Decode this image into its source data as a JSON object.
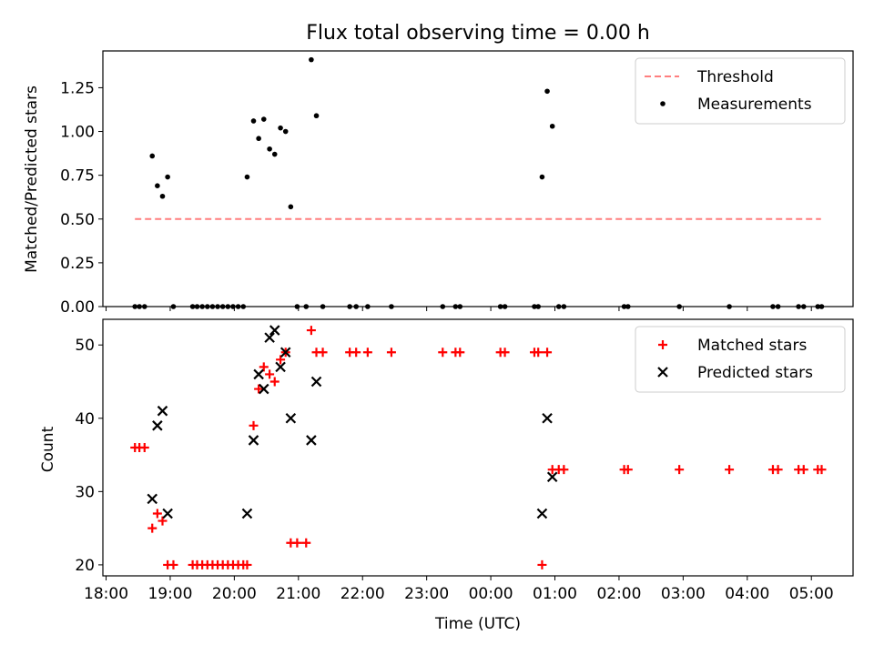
{
  "chart_data": {
    "type": "scatter",
    "title": "Flux total observing time = 0.00 h",
    "xlabel": "Time (UTC)",
    "x_unit": "hours since 18:00 UTC",
    "x_ticks": [
      {
        "x": 0,
        "label": "18:00"
      },
      {
        "x": 1,
        "label": "19:00"
      },
      {
        "x": 2,
        "label": "20:00"
      },
      {
        "x": 3,
        "label": "21:00"
      },
      {
        "x": 4,
        "label": "22:00"
      },
      {
        "x": 5,
        "label": "23:00"
      },
      {
        "x": 6,
        "label": "00:00"
      },
      {
        "x": 7,
        "label": "01:00"
      },
      {
        "x": 8,
        "label": "02:00"
      },
      {
        "x": 9,
        "label": "03:00"
      },
      {
        "x": 10,
        "label": "04:00"
      },
      {
        "x": 11,
        "label": "05:00"
      }
    ],
    "xlim": [
      -0.05,
      11.65
    ],
    "panels": [
      {
        "ylabel": "Matched/Predicted stars",
        "ylim": [
          0,
          1.46
        ],
        "y_ticks": [
          "0.00",
          "0.25",
          "0.50",
          "0.75",
          "1.00",
          "1.25"
        ],
        "y_tick_values": [
          0,
          0.25,
          0.5,
          0.75,
          1.0,
          1.25
        ],
        "legend_position": "top-right",
        "threshold": {
          "name": "Threshold",
          "color": "#ff7f7f",
          "style": "dashed",
          "y": 0.5,
          "x_start": 0.45,
          "x_end": 11.15
        },
        "series": [
          {
            "name": "Measurements",
            "marker": "dot",
            "color": "#000000",
            "points": [
              [
                0.45,
                0
              ],
              [
                0.52,
                0
              ],
              [
                0.6,
                0
              ],
              [
                0.72,
                0.86
              ],
              [
                0.8,
                0.69
              ],
              [
                0.88,
                0.63
              ],
              [
                0.96,
                0.74
              ],
              [
                1.05,
                0
              ],
              [
                1.35,
                0
              ],
              [
                1.42,
                0
              ],
              [
                1.5,
                0
              ],
              [
                1.58,
                0
              ],
              [
                1.66,
                0
              ],
              [
                1.74,
                0
              ],
              [
                1.82,
                0
              ],
              [
                1.9,
                0
              ],
              [
                1.98,
                0
              ],
              [
                2.06,
                0
              ],
              [
                2.14,
                0
              ],
              [
                2.2,
                0.74
              ],
              [
                2.3,
                1.06
              ],
              [
                2.38,
                0.96
              ],
              [
                2.46,
                1.07
              ],
              [
                2.55,
                0.9
              ],
              [
                2.63,
                0.87
              ],
              [
                2.72,
                1.02
              ],
              [
                2.8,
                1.0
              ],
              [
                2.88,
                0.57
              ],
              [
                2.98,
                0
              ],
              [
                3.12,
                0
              ],
              [
                3.2,
                1.41
              ],
              [
                3.28,
                1.09
              ],
              [
                3.38,
                0
              ],
              [
                3.8,
                0
              ],
              [
                3.9,
                0
              ],
              [
                4.08,
                0
              ],
              [
                4.45,
                0
              ],
              [
                5.25,
                0
              ],
              [
                5.45,
                0
              ],
              [
                5.52,
                0
              ],
              [
                6.15,
                0
              ],
              [
                6.22,
                0
              ],
              [
                6.68,
                0
              ],
              [
                6.74,
                0
              ],
              [
                6.8,
                0.74
              ],
              [
                6.88,
                1.23
              ],
              [
                6.96,
                1.03
              ],
              [
                7.06,
                0
              ],
              [
                7.14,
                0
              ],
              [
                8.08,
                0
              ],
              [
                8.14,
                0
              ],
              [
                8.94,
                0
              ],
              [
                9.72,
                0
              ],
              [
                10.4,
                0
              ],
              [
                10.48,
                0
              ],
              [
                10.8,
                0
              ],
              [
                10.88,
                0
              ],
              [
                11.1,
                0
              ],
              [
                11.16,
                0
              ]
            ]
          }
        ]
      },
      {
        "ylabel": "Count",
        "ylim": [
          18.5,
          53.5
        ],
        "y_ticks": [
          "20",
          "30",
          "40",
          "50"
        ],
        "y_tick_values": [
          20,
          30,
          40,
          50
        ],
        "legend_position": "top-right",
        "series": [
          {
            "name": "Matched stars",
            "marker": "plus",
            "color": "#ff0000",
            "points": [
              [
                0.45,
                36
              ],
              [
                0.52,
                36
              ],
              [
                0.6,
                36
              ],
              [
                0.72,
                25
              ],
              [
                0.8,
                27
              ],
              [
                0.88,
                26
              ],
              [
                0.96,
                20
              ],
              [
                1.05,
                20
              ],
              [
                1.35,
                20
              ],
              [
                1.42,
                20
              ],
              [
                1.5,
                20
              ],
              [
                1.58,
                20
              ],
              [
                1.66,
                20
              ],
              [
                1.74,
                20
              ],
              [
                1.82,
                20
              ],
              [
                1.9,
                20
              ],
              [
                1.98,
                20
              ],
              [
                2.06,
                20
              ],
              [
                2.14,
                20
              ],
              [
                2.2,
                20
              ],
              [
                2.3,
                39
              ],
              [
                2.38,
                44
              ],
              [
                2.46,
                47
              ],
              [
                2.55,
                46
              ],
              [
                2.63,
                45
              ],
              [
                2.72,
                48
              ],
              [
                2.8,
                49
              ],
              [
                2.88,
                23
              ],
              [
                2.98,
                23
              ],
              [
                3.12,
                23
              ],
              [
                3.2,
                52
              ],
              [
                3.28,
                49
              ],
              [
                3.38,
                49
              ],
              [
                3.8,
                49
              ],
              [
                3.9,
                49
              ],
              [
                4.08,
                49
              ],
              [
                4.45,
                49
              ],
              [
                5.25,
                49
              ],
              [
                5.45,
                49
              ],
              [
                5.52,
                49
              ],
              [
                6.15,
                49
              ],
              [
                6.22,
                49
              ],
              [
                6.68,
                49
              ],
              [
                6.74,
                49
              ],
              [
                6.8,
                20
              ],
              [
                6.88,
                49
              ],
              [
                6.96,
                33
              ],
              [
                7.06,
                33
              ],
              [
                7.14,
                33
              ],
              [
                8.08,
                33
              ],
              [
                8.14,
                33
              ],
              [
                8.94,
                33
              ],
              [
                9.72,
                33
              ],
              [
                10.4,
                33
              ],
              [
                10.48,
                33
              ],
              [
                10.8,
                33
              ],
              [
                10.88,
                33
              ],
              [
                11.1,
                33
              ],
              [
                11.16,
                33
              ]
            ]
          },
          {
            "name": "Predicted stars",
            "marker": "x",
            "color": "#000000",
            "points": [
              [
                0.72,
                29
              ],
              [
                0.8,
                39
              ],
              [
                0.88,
                41
              ],
              [
                0.96,
                27
              ],
              [
                2.2,
                27
              ],
              [
                2.3,
                37
              ],
              [
                2.38,
                46
              ],
              [
                2.46,
                44
              ],
              [
                2.55,
                51
              ],
              [
                2.63,
                52
              ],
              [
                2.72,
                47
              ],
              [
                2.8,
                49
              ],
              [
                2.88,
                40
              ],
              [
                3.2,
                37
              ],
              [
                3.28,
                45
              ],
              [
                6.8,
                27
              ],
              [
                6.88,
                40
              ],
              [
                6.96,
                32
              ]
            ]
          }
        ]
      }
    ]
  }
}
